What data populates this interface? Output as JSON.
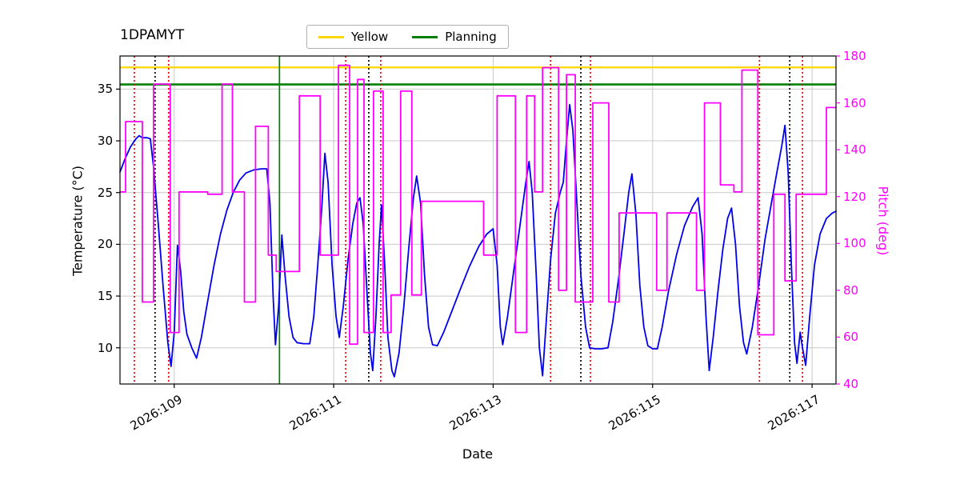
{
  "title": "1DPAMYT",
  "background": "#ffffff",
  "legend": {
    "items": [
      {
        "label": "Yellow",
        "color": "#ffd700"
      },
      {
        "label": "Planning",
        "color": "#008000"
      }
    ]
  },
  "axes": {
    "x": {
      "label": "Date",
      "ticks": [
        "2026:109",
        "2026:111",
        "2026:113",
        "2026:115",
        "2026:117"
      ],
      "tick_values": [
        109,
        111,
        113,
        115,
        117
      ],
      "lim": [
        108.32,
        117.3
      ]
    },
    "y_left": {
      "label": "Temperature (°C)",
      "ticks": [
        10,
        15,
        20,
        25,
        30,
        35
      ],
      "lim": [
        6.5,
        38.2
      ],
      "color": "#000000"
    },
    "y_right": {
      "label": "Pitch (deg)",
      "ticks": [
        40,
        60,
        80,
        100,
        120,
        140,
        160,
        180
      ],
      "lim": [
        40,
        180
      ],
      "color": "#ff00ff"
    },
    "grid_color": "#c9c9c9"
  },
  "chart_data": {
    "type": "line",
    "title": "1DPAMYT",
    "xlabel": "Date",
    "ylabel_left": "Temperature (°C)",
    "ylabel_right": "Pitch (deg)",
    "x_format": "year:day-of-year",
    "xlim": [
      108.32,
      117.3
    ],
    "ylim_left": [
      6.5,
      38.2
    ],
    "ylim_right": [
      40,
      180
    ],
    "grid": true,
    "legend_position": "top-center",
    "series": [
      {
        "name": "Temperature",
        "axis": "left",
        "color": "#0000ee",
        "style": "line",
        "points": [
          [
            108.32,
            27.0
          ],
          [
            108.38,
            28.2
          ],
          [
            108.45,
            29.4
          ],
          [
            108.52,
            30.2
          ],
          [
            108.56,
            30.5
          ],
          [
            108.6,
            30.3
          ],
          [
            108.66,
            30.3
          ],
          [
            108.7,
            30.2
          ],
          [
            108.74,
            27.5
          ],
          [
            108.8,
            22.0
          ],
          [
            108.86,
            16.0
          ],
          [
            108.92,
            10.5
          ],
          [
            108.96,
            8.2
          ],
          [
            109.0,
            11.5
          ],
          [
            109.04,
            19.9
          ],
          [
            109.08,
            17.5
          ],
          [
            109.12,
            13.5
          ],
          [
            109.16,
            11.3
          ],
          [
            109.22,
            10.0
          ],
          [
            109.28,
            9.0
          ],
          [
            109.34,
            11.0
          ],
          [
            109.42,
            14.5
          ],
          [
            109.5,
            18.0
          ],
          [
            109.58,
            21.0
          ],
          [
            109.66,
            23.3
          ],
          [
            109.74,
            25.0
          ],
          [
            109.82,
            26.2
          ],
          [
            109.9,
            26.9
          ],
          [
            110.0,
            27.2
          ],
          [
            110.1,
            27.3
          ],
          [
            110.16,
            27.3
          ],
          [
            110.2,
            24.0
          ],
          [
            110.24,
            15.0
          ],
          [
            110.27,
            10.3
          ],
          [
            110.31,
            14.0
          ],
          [
            110.35,
            20.9
          ],
          [
            110.39,
            17.0
          ],
          [
            110.44,
            13.0
          ],
          [
            110.49,
            11.0
          ],
          [
            110.54,
            10.5
          ],
          [
            110.62,
            10.4
          ],
          [
            110.7,
            10.4
          ],
          [
            110.75,
            13.0
          ],
          [
            110.8,
            18.0
          ],
          [
            110.85,
            23.5
          ],
          [
            110.89,
            28.8
          ],
          [
            110.93,
            26.0
          ],
          [
            110.98,
            18.0
          ],
          [
            111.03,
            13.0
          ],
          [
            111.07,
            11.0
          ],
          [
            111.12,
            14.0
          ],
          [
            111.18,
            18.5
          ],
          [
            111.24,
            22.0
          ],
          [
            111.29,
            24.0
          ],
          [
            111.33,
            24.5
          ],
          [
            111.37,
            22.0
          ],
          [
            111.42,
            15.0
          ],
          [
            111.46,
            9.5
          ],
          [
            111.49,
            7.8
          ],
          [
            111.53,
            13.0
          ],
          [
            111.57,
            20.0
          ],
          [
            111.6,
            23.8
          ],
          [
            111.64,
            18.0
          ],
          [
            111.68,
            11.0
          ],
          [
            111.73,
            7.8
          ],
          [
            111.76,
            7.2
          ],
          [
            111.82,
            9.5
          ],
          [
            111.88,
            14.0
          ],
          [
            111.94,
            19.5
          ],
          [
            112.0,
            24.5
          ],
          [
            112.04,
            26.6
          ],
          [
            112.09,
            24.0
          ],
          [
            112.14,
            17.0
          ],
          [
            112.19,
            12.0
          ],
          [
            112.24,
            10.3
          ],
          [
            112.3,
            10.2
          ],
          [
            112.38,
            11.5
          ],
          [
            112.48,
            13.5
          ],
          [
            112.58,
            15.5
          ],
          [
            112.7,
            17.8
          ],
          [
            112.82,
            19.8
          ],
          [
            112.92,
            21.0
          ],
          [
            113.0,
            21.5
          ],
          [
            113.05,
            18.0
          ],
          [
            113.09,
            12.0
          ],
          [
            113.12,
            10.3
          ],
          [
            113.18,
            13.0
          ],
          [
            113.26,
            17.5
          ],
          [
            113.34,
            22.0
          ],
          [
            113.41,
            26.0
          ],
          [
            113.45,
            28.0
          ],
          [
            113.49,
            25.0
          ],
          [
            113.54,
            17.0
          ],
          [
            113.58,
            10.0
          ],
          [
            113.62,
            7.3
          ],
          [
            113.67,
            13.0
          ],
          [
            113.72,
            18.5
          ],
          [
            113.78,
            23.0
          ],
          [
            113.84,
            25.0
          ],
          [
            113.88,
            26.0
          ],
          [
            113.92,
            30.0
          ],
          [
            113.96,
            33.5
          ],
          [
            114.0,
            31.0
          ],
          [
            114.05,
            24.0
          ],
          [
            114.1,
            17.0
          ],
          [
            114.16,
            12.0
          ],
          [
            114.21,
            10.0
          ],
          [
            114.28,
            9.9
          ],
          [
            114.36,
            9.9
          ],
          [
            114.44,
            10.0
          ],
          [
            114.5,
            12.5
          ],
          [
            114.57,
            16.5
          ],
          [
            114.64,
            21.0
          ],
          [
            114.7,
            25.0
          ],
          [
            114.74,
            26.8
          ],
          [
            114.79,
            23.0
          ],
          [
            114.84,
            16.0
          ],
          [
            114.89,
            12.0
          ],
          [
            114.94,
            10.2
          ],
          [
            115.0,
            9.9
          ],
          [
            115.06,
            9.9
          ],
          [
            115.12,
            12.0
          ],
          [
            115.2,
            15.5
          ],
          [
            115.3,
            19.0
          ],
          [
            115.4,
            21.8
          ],
          [
            115.5,
            23.6
          ],
          [
            115.57,
            24.5
          ],
          [
            115.62,
            21.0
          ],
          [
            115.67,
            13.0
          ],
          [
            115.71,
            7.8
          ],
          [
            115.76,
            11.0
          ],
          [
            115.82,
            15.5
          ],
          [
            115.88,
            19.5
          ],
          [
            115.94,
            22.5
          ],
          [
            115.99,
            23.5
          ],
          [
            116.04,
            20.0
          ],
          [
            116.09,
            14.0
          ],
          [
            116.14,
            10.5
          ],
          [
            116.18,
            9.4
          ],
          [
            116.25,
            12.0
          ],
          [
            116.33,
            16.0
          ],
          [
            116.41,
            20.5
          ],
          [
            116.49,
            24.0
          ],
          [
            116.56,
            27.0
          ],
          [
            116.62,
            29.5
          ],
          [
            116.66,
            31.5
          ],
          [
            116.7,
            27.0
          ],
          [
            116.74,
            18.0
          ],
          [
            116.78,
            10.5
          ],
          [
            116.81,
            8.5
          ],
          [
            116.85,
            11.5
          ],
          [
            116.88,
            10.0
          ],
          [
            116.92,
            8.3
          ],
          [
            116.97,
            13.0
          ],
          [
            117.03,
            18.0
          ],
          [
            117.1,
            21.0
          ],
          [
            117.18,
            22.5
          ],
          [
            117.25,
            23.0
          ],
          [
            117.3,
            23.2
          ]
        ]
      },
      {
        "name": "Pitch",
        "axis": "right",
        "color": "#ff00ff",
        "style": "step",
        "points": [
          [
            108.32,
            122
          ],
          [
            108.39,
            152
          ],
          [
            108.6,
            75
          ],
          [
            108.74,
            168
          ],
          [
            108.95,
            62
          ],
          [
            109.06,
            122
          ],
          [
            109.42,
            121
          ],
          [
            109.6,
            168
          ],
          [
            109.73,
            122
          ],
          [
            109.88,
            75
          ],
          [
            110.02,
            150
          ],
          [
            110.18,
            95
          ],
          [
            110.28,
            88
          ],
          [
            110.57,
            163
          ],
          [
            110.83,
            95
          ],
          [
            111.06,
            176
          ],
          [
            111.2,
            57
          ],
          [
            111.3,
            170
          ],
          [
            111.38,
            62
          ],
          [
            111.5,
            165
          ],
          [
            111.62,
            62
          ],
          [
            111.72,
            78
          ],
          [
            111.84,
            165
          ],
          [
            111.98,
            78
          ],
          [
            112.1,
            118
          ],
          [
            112.56,
            118
          ],
          [
            112.88,
            95
          ],
          [
            113.05,
            163
          ],
          [
            113.28,
            62
          ],
          [
            113.42,
            163
          ],
          [
            113.52,
            122
          ],
          [
            113.62,
            175
          ],
          [
            113.82,
            80
          ],
          [
            113.92,
            172
          ],
          [
            114.03,
            75
          ],
          [
            114.25,
            160
          ],
          [
            114.45,
            75
          ],
          [
            114.58,
            113
          ],
          [
            115.05,
            80
          ],
          [
            115.18,
            113
          ],
          [
            115.55,
            80
          ],
          [
            115.65,
            160
          ],
          [
            115.85,
            125
          ],
          [
            116.02,
            122
          ],
          [
            116.12,
            174
          ],
          [
            116.32,
            61
          ],
          [
            116.52,
            121
          ],
          [
            116.66,
            84
          ],
          [
            116.8,
            121
          ],
          [
            117.18,
            158
          ],
          [
            117.3,
            158
          ]
        ]
      }
    ],
    "hlines": [
      {
        "name": "Yellow",
        "y": 37.1,
        "axis": "left",
        "color": "#ffd700",
        "width": 2.2,
        "style": "solid"
      },
      {
        "name": "Planning",
        "y": 35.45,
        "axis": "left",
        "color": "#008000",
        "width": 2.6,
        "style": "solid"
      }
    ],
    "vlines": [
      {
        "x": 108.5,
        "color": "#ee0000",
        "style": "dotted"
      },
      {
        "x": 108.76,
        "color": "#000000",
        "style": "dotted"
      },
      {
        "x": 108.93,
        "color": "#ee0000",
        "style": "dotted"
      },
      {
        "x": 110.32,
        "color": "#008000",
        "style": "solid"
      },
      {
        "x": 111.15,
        "color": "#ee0000",
        "style": "dotted"
      },
      {
        "x": 111.44,
        "color": "#000000",
        "style": "dotted"
      },
      {
        "x": 111.59,
        "color": "#ee0000",
        "style": "dotted"
      },
      {
        "x": 113.72,
        "color": "#ee0000",
        "style": "dotted"
      },
      {
        "x": 114.1,
        "color": "#000000",
        "style": "dotted"
      },
      {
        "x": 114.22,
        "color": "#ee0000",
        "style": "dotted"
      },
      {
        "x": 116.34,
        "color": "#ee0000",
        "style": "dotted"
      },
      {
        "x": 116.72,
        "color": "#000000",
        "style": "dotted"
      },
      {
        "x": 116.88,
        "color": "#ee0000",
        "style": "dotted"
      }
    ]
  }
}
